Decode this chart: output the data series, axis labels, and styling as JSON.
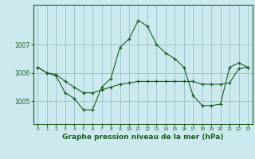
{
  "background_color": "#cde9f0",
  "grid_color": "#9cbfc8",
  "line_color": "#1a5c1a",
  "marker_color": "#1a5c1a",
  "xlabel": "Graphe pression niveau de la mer (hPa)",
  "xlabel_fontsize": 6.5,
  "ylabel_ticks": [
    1005,
    1006,
    1007
  ],
  "xticks": [
    0,
    1,
    2,
    3,
    4,
    5,
    6,
    7,
    8,
    9,
    10,
    11,
    12,
    13,
    14,
    15,
    16,
    17,
    18,
    19,
    20,
    21,
    22,
    23
  ],
  "xlim": [
    -0.5,
    23.5
  ],
  "ylim": [
    1004.2,
    1008.4
  ],
  "series1_x": [
    0,
    1,
    2,
    3,
    4,
    5,
    6,
    7,
    8,
    9,
    10,
    11,
    12,
    13,
    14,
    15,
    16,
    17,
    18,
    19,
    20,
    21,
    22,
    23
  ],
  "series1_y": [
    1006.2,
    1006.0,
    1005.95,
    1005.7,
    1005.5,
    1005.3,
    1005.3,
    1005.4,
    1005.5,
    1005.6,
    1005.65,
    1005.7,
    1005.7,
    1005.7,
    1005.7,
    1005.7,
    1005.7,
    1005.7,
    1005.6,
    1005.6,
    1005.6,
    1005.65,
    1006.15,
    1006.2
  ],
  "series2_x": [
    0,
    1,
    2,
    3,
    4,
    5,
    6,
    7,
    8,
    9,
    10,
    11,
    12,
    13,
    14,
    15,
    16,
    17,
    18,
    19,
    20,
    21,
    22,
    23
  ],
  "series2_y": [
    1006.2,
    1006.0,
    1005.9,
    1005.3,
    1005.1,
    1004.7,
    1004.7,
    1005.5,
    1005.8,
    1006.9,
    1007.2,
    1007.85,
    1007.65,
    1007.0,
    1006.7,
    1006.5,
    1006.2,
    1005.2,
    1004.85,
    1004.85,
    1004.9,
    1006.2,
    1006.35,
    1006.2
  ]
}
